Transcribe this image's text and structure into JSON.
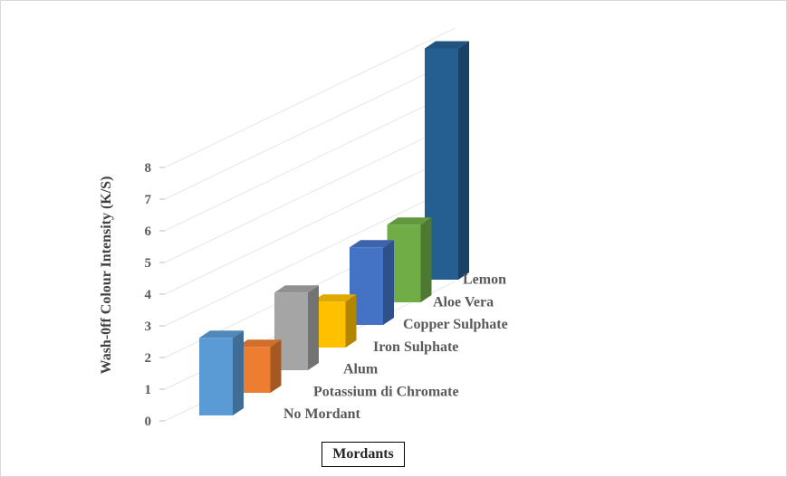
{
  "chart_data": {
    "type": "bar",
    "style": "3d-column",
    "categories": [
      "No Mordant",
      "Potassium di Chromate",
      "Alum",
      "Iron Sulphate",
      "Copper Sulphate",
      "Aloe Vera",
      "Lemon"
    ],
    "values": [
      2.45,
      1.45,
      2.45,
      1.45,
      2.45,
      2.45,
      7.3
    ],
    "colors": [
      "#5b9bd5",
      "#ed7d31",
      "#a5a5a5",
      "#ffc000",
      "#4472c4",
      "#70ad47",
      "#255e91"
    ],
    "xlabel": "Mordants",
    "ylabel": "Wash-0ff  Colour Intensity  (K/S)",
    "yticks": [
      "0",
      "1",
      "2",
      "3",
      "4",
      "5",
      "6",
      "7",
      "8"
    ],
    "ylim": [
      0,
      8
    ],
    "grid": true,
    "legend": "none"
  }
}
